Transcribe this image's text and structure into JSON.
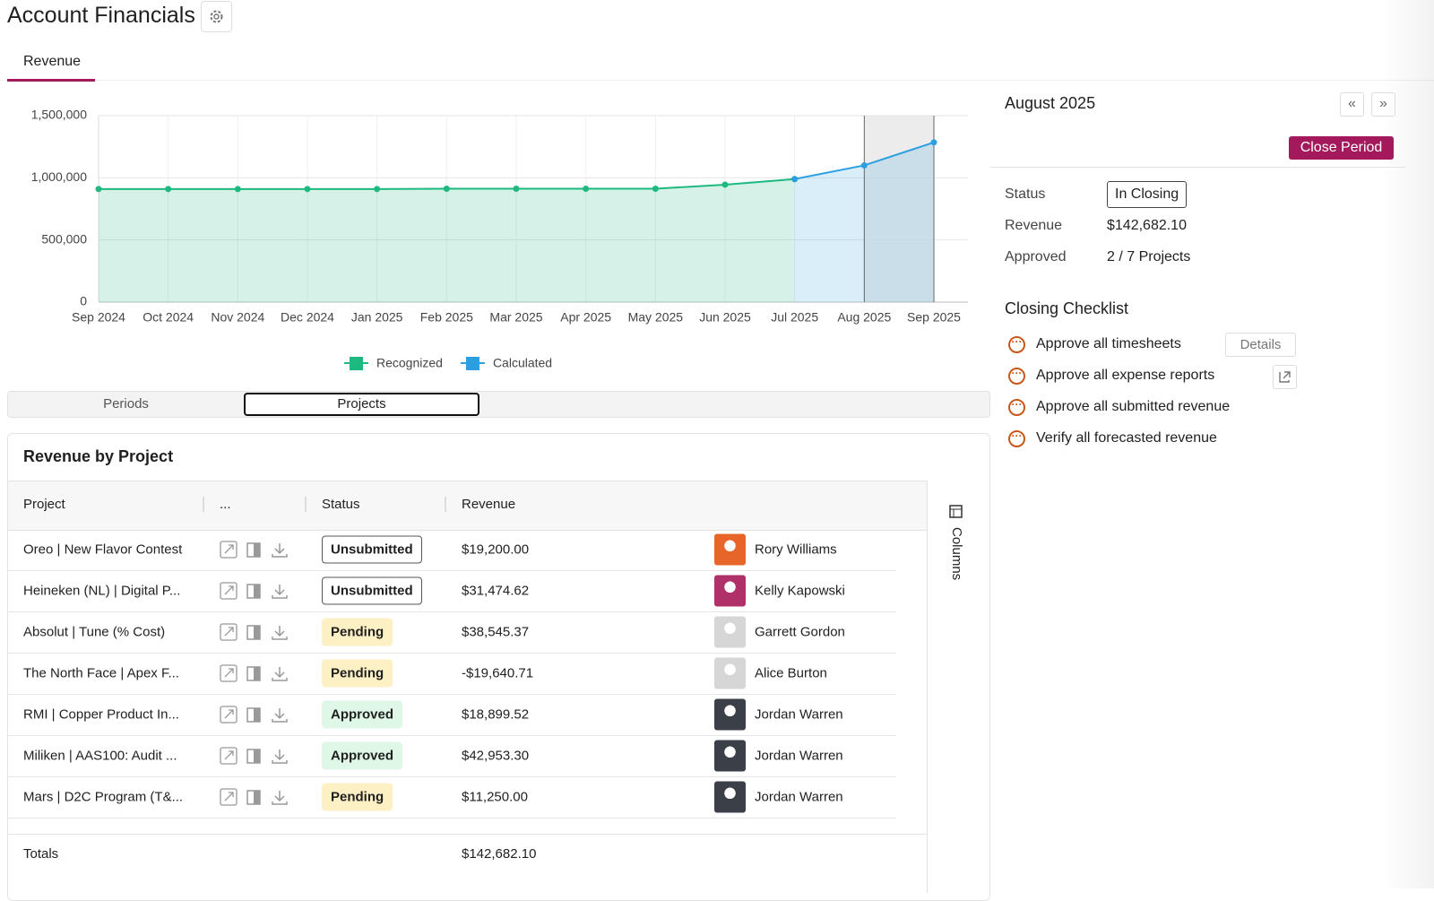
{
  "header": {
    "title": "Account Financials",
    "tab": "Revenue"
  },
  "chart_data": {
    "type": "area",
    "categories": [
      "Sep 2024",
      "Oct 2024",
      "Nov 2024",
      "Dec 2024",
      "Jan 2025",
      "Feb 2025",
      "Mar 2025",
      "Apr 2025",
      "May 2025",
      "Jun 2025",
      "Jul 2025",
      "Aug 2025",
      "Sep 2025"
    ],
    "series": [
      {
        "name": "Recognized",
        "color": "#1db980",
        "values": [
          910000,
          910000,
          910000,
          910000,
          910000,
          912000,
          912000,
          912000,
          912000,
          945000,
          990000,
          null,
          null
        ]
      },
      {
        "name": "Calculated",
        "color": "#2b9fe0",
        "values": [
          null,
          null,
          null,
          null,
          null,
          null,
          null,
          null,
          null,
          null,
          990000,
          1100000,
          1285000
        ]
      }
    ],
    "ylim": [
      0,
      1500000
    ],
    "yticks": [
      0,
      {
        "value": 500000,
        "label": "500,000"
      },
      {
        "value": 1000000,
        "label": "1,000,000"
      },
      {
        "value": 1500000,
        "label": "1,500,000"
      }
    ],
    "grid": true,
    "legend": "bottom"
  },
  "view_toggle": [
    "Periods",
    "Projects"
  ],
  "period_panel": {
    "title": "August 2025",
    "action": "Close Period",
    "fields": [
      {
        "label": "Status",
        "value": "In Closing"
      },
      {
        "label": "Revenue",
        "value": "$142,682.10"
      },
      {
        "label": "Approved",
        "value": "2 / 7 Projects"
      }
    ],
    "checklist_title": "Closing Checklist",
    "checklist": [
      "Approve all timesheets",
      "Approve all expense reports",
      "Approve all submitted revenue",
      "Verify all forecasted revenue"
    ],
    "details": "Details"
  },
  "table": {
    "title": "Revenue by Project",
    "columns": [
      "Project",
      "...",
      "Status",
      "Revenue"
    ],
    "rows": [
      {
        "project": "Oreo | New Flavor Contest",
        "status": "Unsubmitted",
        "status_color": "#ffffff",
        "revenue": "$19,200.00",
        "owner": "Rory Williams",
        "avatar_color": "#e8652a"
      },
      {
        "project": "Heineken (NL) | Digital P...",
        "status": "Unsubmitted",
        "status_color": "#ffffff",
        "revenue": "$31,474.62",
        "owner": "Kelly Kapowski",
        "avatar_color": "#b0306a"
      },
      {
        "project": "Absolut | Tune (% Cost)",
        "status": "Pending",
        "status_color": "#fdf0c4",
        "revenue": "$38,545.37",
        "owner": "Garrett Gordon",
        "avatar_color": "#d6d6d6"
      },
      {
        "project": "The North Face | Apex F...",
        "status": "Pending",
        "status_color": "#fdf0c4",
        "revenue": "-$19,640.71",
        "owner": "Alice Burton",
        "avatar_color": "#d6d6d6"
      },
      {
        "project": "RMI | Copper Product In...",
        "status": "Approved",
        "status_color": "#dff7e6",
        "revenue": "$18,899.52",
        "owner": "Jordan Warren",
        "avatar_color": "#3a3f48"
      },
      {
        "project": "Miliken | AAS100: Audit ...",
        "status": "Approved",
        "status_color": "#dff7e6",
        "revenue": "$42,953.30",
        "owner": "Jordan Warren",
        "avatar_color": "#3a3f48"
      },
      {
        "project": "Mars | D2C Program (T&...",
        "status": "Pending",
        "status_color": "#fdf0c4",
        "revenue": "$11,250.00",
        "owner": "Jordan Warren",
        "avatar_color": "#3a3f48"
      }
    ],
    "totals_label": "Totals",
    "total": "$142,682.10",
    "columns_button": "Columns"
  }
}
